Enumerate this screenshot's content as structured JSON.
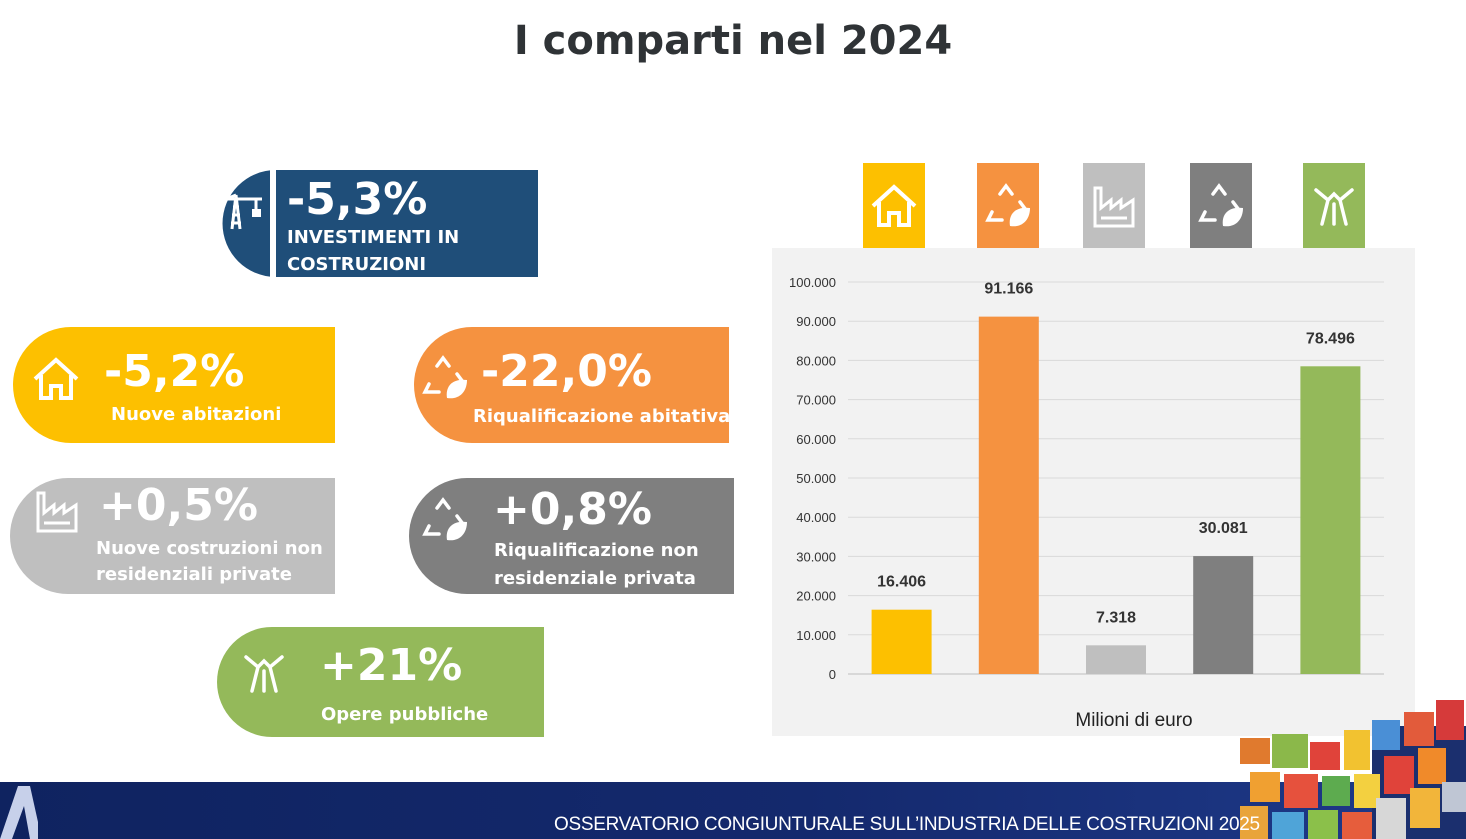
{
  "title": "I comparti nel 2024",
  "colors": {
    "blue": "#1f4e79",
    "yellow": "#fdc000",
    "orange": "#f59240",
    "light_gray": "#bfbfbf",
    "dark_gray": "#7f7f7f",
    "green": "#94b95a"
  },
  "sectors": {
    "investimenti": {
      "pct": "-5,3%",
      "label_line1": "INVESTIMENTI IN",
      "label_line2": "COSTRUZIONI",
      "icon": "crane-icon"
    },
    "nuove_abitazioni": {
      "pct": "-5,2%",
      "label_line1": "Nuove abitazioni",
      "icon": "house-icon"
    },
    "riqualificazione_abitativa": {
      "pct": "-22,0%",
      "label_line1": "Riqualificazione abitativa",
      "icon": "recycle-leaf-icon"
    },
    "nuove_non_residenziali": {
      "pct": "+0,5%",
      "label_line1": "Nuove  costruzioni  non",
      "label_line2": "residenziali private",
      "icon": "factory-icon"
    },
    "riqualificazione_non_residenziale": {
      "pct": "+0,8%",
      "label_line1": "Riqualificazione non",
      "label_line2": "residenziale privata",
      "icon": "recycle-leaf-icon"
    },
    "opere_pubbliche": {
      "pct": "+21%",
      "label_line1": "Opere pubbliche",
      "icon": "road-icon"
    }
  },
  "chart_data": {
    "type": "bar",
    "categories": [
      "Nuove abitazioni",
      "Riqualificazione abitativa",
      "Nuove costruzioni non residenziali private",
      "Riqualificazione non residenziale privata",
      "Opere pubbliche"
    ],
    "values": [
      16406,
      91166,
      7318,
      30081,
      78496
    ],
    "value_labels": [
      "16.406",
      "91.166",
      "7.318",
      "30.081",
      "78.496"
    ],
    "bar_colors": [
      "#fdc000",
      "#f59240",
      "#bfbfbf",
      "#7f7f7f",
      "#94b95a"
    ],
    "category_icons": [
      "house-icon",
      "recycle-leaf-icon",
      "factory-icon",
      "recycle-leaf-icon",
      "road-icon"
    ],
    "xlabel": "Milioni di euro",
    "ylabel": "",
    "ylim": [
      0,
      100000
    ],
    "yticks": [
      0,
      10000,
      20000,
      30000,
      40000,
      50000,
      60000,
      70000,
      80000,
      90000,
      100000
    ],
    "ytick_labels": [
      "0",
      "10.000",
      "20.000",
      "30.000",
      "40.000",
      "50.000",
      "60.000",
      "70.000",
      "80.000",
      "90.000",
      "100.000"
    ],
    "grid": true,
    "legend": "none"
  },
  "footer": {
    "text": "OSSERVATORIO CONGIUNTURALE SULL’INDUSTRIA DELLE COSTRUZIONI 2025"
  }
}
